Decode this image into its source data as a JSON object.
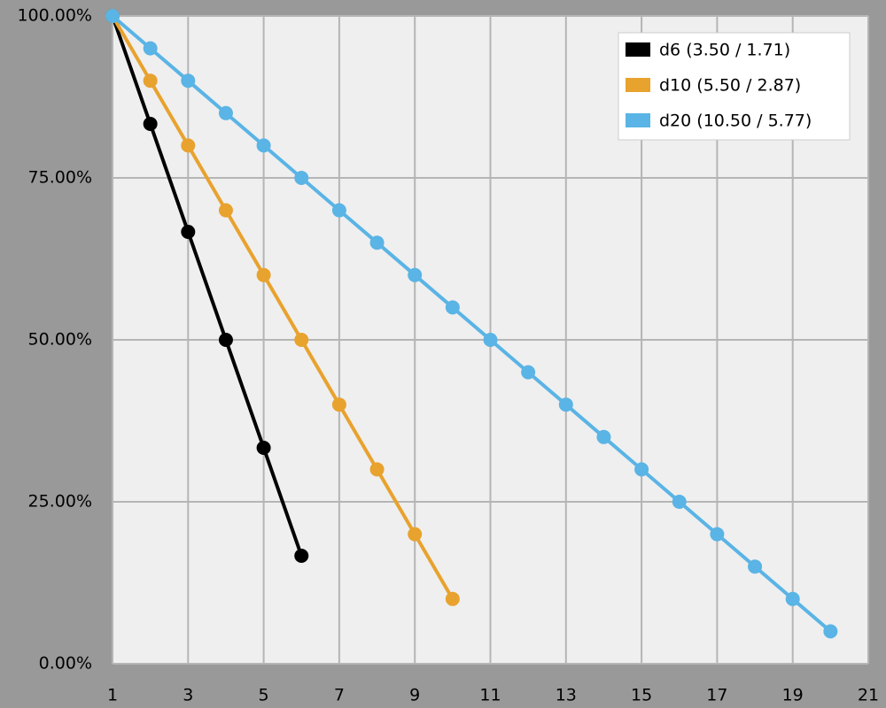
{
  "chart_data": {
    "type": "line",
    "series": [
      {
        "name": "d6 (3.50 / 1.71)",
        "color": "#000000",
        "x": [
          1,
          2,
          3,
          4,
          5,
          6
        ],
        "values": [
          100,
          83.33,
          66.67,
          50,
          33.33,
          16.67
        ]
      },
      {
        "name": "d10 (5.50 / 2.87)",
        "color": "#e8a22e",
        "x": [
          1,
          2,
          3,
          4,
          5,
          6,
          7,
          8,
          9,
          10
        ],
        "values": [
          100,
          90,
          80,
          70,
          60,
          50,
          40,
          30,
          20,
          10
        ]
      },
      {
        "name": "d20 (10.50 / 5.77)",
        "color": "#5ab4e5",
        "x": [
          1,
          2,
          3,
          4,
          5,
          6,
          7,
          8,
          9,
          10,
          11,
          12,
          13,
          14,
          15,
          16,
          17,
          18,
          19,
          20
        ],
        "values": [
          100,
          95,
          90,
          85,
          80,
          75,
          70,
          65,
          60,
          55,
          50,
          45,
          40,
          35,
          30,
          25,
          20,
          15,
          10,
          5
        ]
      }
    ],
    "xlim": [
      1,
      21
    ],
    "xticks": [
      1,
      3,
      5,
      7,
      9,
      11,
      13,
      15,
      17,
      19,
      21
    ],
    "ylim": [
      0,
      100
    ],
    "yticks": [
      {
        "value": 0,
        "label": "0.00%"
      },
      {
        "value": 25,
        "label": "25.00%"
      },
      {
        "value": 50,
        "label": "50.00%"
      },
      {
        "value": 75,
        "label": "75.00%"
      },
      {
        "value": 100,
        "label": "100.00%"
      }
    ],
    "grid": true,
    "legend": "top-right"
  }
}
